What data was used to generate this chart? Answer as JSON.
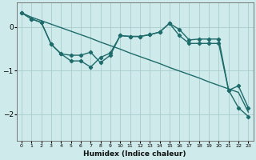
{
  "xlabel": "Humidex (Indice chaleur)",
  "bg_color": "#ceeaea",
  "grid_color": "#a8cccc",
  "line_color": "#1e6b6b",
  "xlim": [
    -0.5,
    23.5
  ],
  "ylim": [
    -2.6,
    0.55
  ],
  "yticks": [
    0,
    -1,
    -2
  ],
  "xticks": [
    0,
    1,
    2,
    3,
    4,
    5,
    6,
    7,
    8,
    9,
    10,
    11,
    12,
    13,
    14,
    15,
    16,
    17,
    18,
    19,
    20,
    21,
    22,
    23
  ],
  "series1_x": [
    0,
    1,
    2,
    3,
    4,
    5,
    6,
    7,
    8,
    9,
    10,
    11,
    12,
    13,
    14,
    15,
    16,
    17,
    18,
    19,
    20,
    21,
    22,
    23
  ],
  "series1_y": [
    0.32,
    0.22,
    0.14,
    0.06,
    -0.02,
    -0.1,
    -0.18,
    -0.26,
    -0.35,
    -0.43,
    -0.51,
    -0.6,
    -0.68,
    -0.76,
    -0.84,
    -0.93,
    -1.01,
    -1.09,
    -1.17,
    -1.26,
    -1.34,
    -1.42,
    -1.5,
    -1.95
  ],
  "series2_x": [
    0,
    1,
    2,
    3,
    4,
    5,
    6,
    7,
    8,
    9,
    10,
    11,
    12,
    13,
    14,
    15,
    16,
    17,
    18,
    19,
    20,
    21,
    22,
    23
  ],
  "series2_y": [
    0.32,
    0.18,
    0.1,
    -0.4,
    -0.62,
    -0.65,
    -0.65,
    -0.58,
    -0.82,
    -0.65,
    -0.2,
    -0.22,
    -0.22,
    -0.18,
    -0.12,
    0.08,
    -0.06,
    -0.3,
    -0.28,
    -0.28,
    -0.28,
    -1.45,
    -1.35,
    -1.85
  ],
  "series3_x": [
    0,
    1,
    2,
    3,
    4,
    5,
    6,
    7,
    8,
    9,
    10,
    11,
    12,
    13,
    14,
    15,
    16,
    17,
    18,
    19,
    20,
    21,
    22,
    23
  ],
  "series3_y": [
    0.32,
    0.18,
    0.1,
    -0.4,
    -0.62,
    -0.78,
    -0.78,
    -0.92,
    -0.7,
    -0.6,
    -0.2,
    -0.22,
    -0.22,
    -0.18,
    -0.12,
    0.08,
    -0.2,
    -0.38,
    -0.38,
    -0.38,
    -0.38,
    -1.45,
    -1.85,
    -2.05
  ],
  "marker": "D",
  "markersize": 2.2,
  "linewidth": 1.0
}
